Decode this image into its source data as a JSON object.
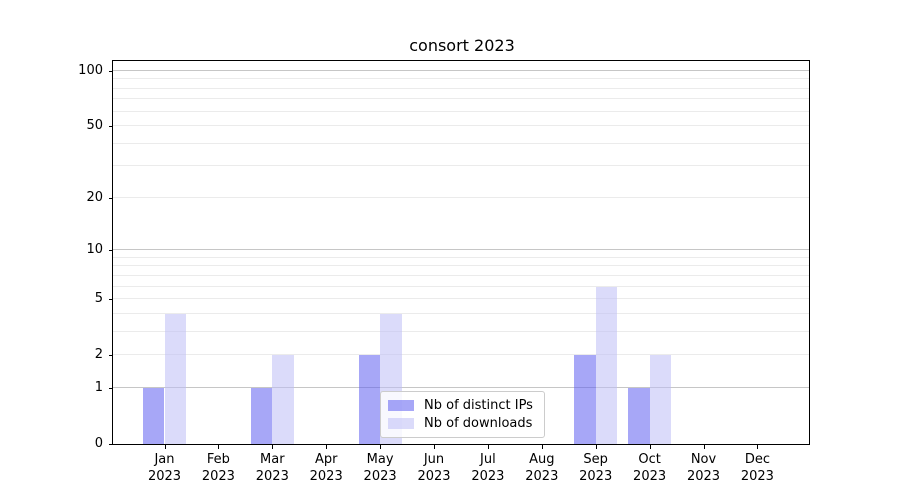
{
  "figure_title": "consort 2023",
  "chart_data": {
    "type": "bar",
    "title": "consort 2023",
    "x_tick_months": [
      "Jan",
      "Feb",
      "Mar",
      "Apr",
      "May",
      "Jun",
      "Jul",
      "Aug",
      "Sep",
      "Oct",
      "Nov",
      "Dec"
    ],
    "x_tick_year": "2023",
    "series": [
      {
        "name": "Nb of distinct IPs",
        "color": "#5f5ff1",
        "alpha": 0.55,
        "values": [
          1,
          0,
          1,
          0,
          2,
          0,
          0,
          0,
          2,
          1,
          0,
          0
        ]
      },
      {
        "name": "Nb of downloads",
        "color": "#bebef6",
        "alpha": 0.55,
        "values": [
          4,
          0,
          2,
          0,
          4,
          0,
          0,
          0,
          6,
          2,
          0,
          0
        ]
      }
    ],
    "yscale": "log1p",
    "ylim": [
      0,
      113
    ],
    "yticks": [
      0,
      1,
      2,
      5,
      10,
      20,
      50,
      100
    ],
    "ytick_labels": [
      "0",
      "1",
      "2",
      "5",
      "10",
      "20",
      "50",
      "100"
    ],
    "major_gridlines": [
      1,
      10,
      100
    ],
    "minor_gridlines": [
      2,
      3,
      4,
      5,
      6,
      7,
      8,
      9,
      20,
      30,
      40,
      50,
      60,
      70,
      80,
      90
    ],
    "grid": true,
    "legend_position": "lower center",
    "legend_labels": [
      "Nb of distinct IPs",
      "Nb of downloads"
    ]
  }
}
